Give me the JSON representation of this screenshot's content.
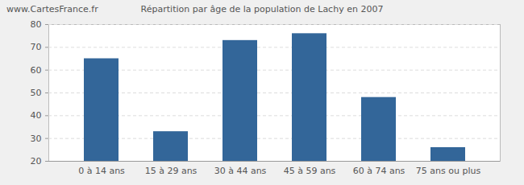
{
  "chart_data": {
    "type": "bar",
    "title": "Répartition par âge de la population de Lachy en 2007",
    "annotations": [
      "www.CartesFrance.fr"
    ],
    "categories": [
      "0 à 14 ans",
      "15 à 29 ans",
      "30 à 44 ans",
      "45 à 59 ans",
      "60 à 74 ans",
      "75 ans ou plus"
    ],
    "values": [
      65,
      33,
      73,
      76,
      48,
      26
    ],
    "color": "#336699",
    "ylim": [
      20,
      80
    ],
    "yticks": [
      20,
      30,
      40,
      50,
      60,
      70,
      80
    ],
    "grid": true
  }
}
